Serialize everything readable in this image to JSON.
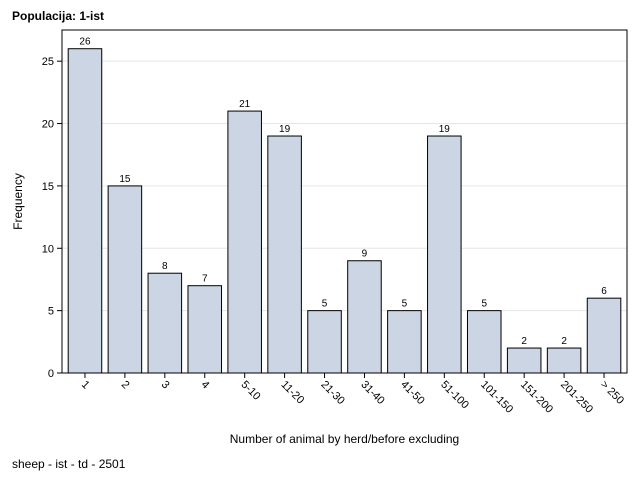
{
  "page_title": "Populacija: 1-ist",
  "footnote": "sheep - ist - td - 2501",
  "colors": {
    "bar_fill": "#cbd5e4",
    "bar_stroke": "#000000",
    "grid": "#e6e6e6",
    "axis": "#000000"
  },
  "chart_data": {
    "type": "bar",
    "categories": [
      "1",
      "2",
      "3",
      "4",
      "5-10",
      "11-20",
      "21-30",
      "31-40",
      "41-50",
      "51-100",
      "101-150",
      "151-200",
      "201-250",
      "> 250"
    ],
    "values": [
      26,
      15,
      8,
      7,
      21,
      19,
      5,
      9,
      5,
      19,
      5,
      2,
      2,
      6
    ],
    "data_labels": [
      "26",
      "15",
      "8",
      "7",
      "21",
      "19",
      "5",
      "9",
      "5",
      "19",
      "5",
      "2",
      "2",
      "6"
    ],
    "title": "Populacija: 1-ist",
    "xlabel": "Number of animal by herd/before excluding",
    "ylabel": "Frequency",
    "ylim": [
      0,
      27.5
    ],
    "yticks": [
      0,
      5,
      10,
      15,
      20,
      25
    ],
    "ytick_labels": [
      "0",
      "5",
      "10",
      "15",
      "20",
      "25"
    ],
    "grid": true,
    "legend": "none"
  }
}
